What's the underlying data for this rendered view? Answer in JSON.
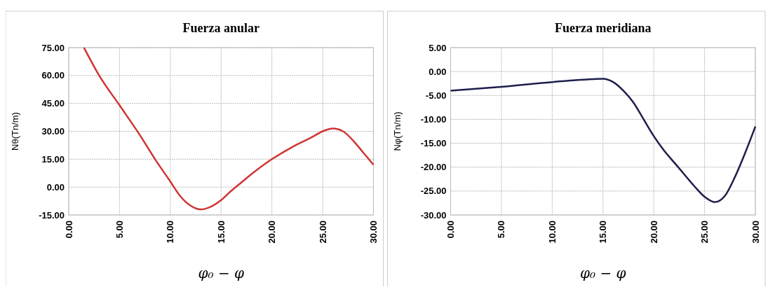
{
  "chart_data": [
    {
      "type": "line",
      "title": "Fuerza anular",
      "xlabel": "φ₀ − φ",
      "ylabel": "Nθ(Tn/m)",
      "xlim": [
        0,
        30
      ],
      "ylim": [
        -15,
        75
      ],
      "xticks": [
        {
          "value": 0,
          "label": "0.00"
        },
        {
          "value": 5,
          "label": "5.00"
        },
        {
          "value": 10,
          "label": "10.00"
        },
        {
          "value": 15,
          "label": "15.00"
        },
        {
          "value": 20,
          "label": "20.00"
        },
        {
          "value": 25,
          "label": "25.00"
        },
        {
          "value": 30,
          "label": "30.00"
        }
      ],
      "yticks": [
        {
          "value": -15,
          "label": "-15.00"
        },
        {
          "value": 0,
          "label": "0.00"
        },
        {
          "value": 15,
          "label": "15.00"
        },
        {
          "value": 30,
          "label": "30.00"
        },
        {
          "value": 45,
          "label": "45.00"
        },
        {
          "value": 60,
          "label": "60.00"
        },
        {
          "value": 75,
          "label": "75.00"
        }
      ],
      "grid": true,
      "series": [
        {
          "color": "#d03434",
          "x": [
            1.5,
            3,
            5,
            7,
            8.5,
            10,
            11,
            12,
            13,
            14,
            15,
            16,
            17,
            18,
            20,
            22,
            24,
            25,
            26,
            27,
            28,
            29,
            30
          ],
          "values": [
            75,
            60,
            44,
            28,
            15,
            3,
            -5,
            -10,
            -12,
            -10.5,
            -7,
            -2,
            2.5,
            7,
            15,
            21.5,
            27,
            30,
            31.5,
            30,
            25,
            18.5,
            12
          ]
        }
      ]
    },
    {
      "type": "line",
      "title": "Fuerza meridiana",
      "xlabel": "φ₀ − φ",
      "ylabel": "Nφ(Tn/m)",
      "xlim": [
        0,
        30
      ],
      "ylim": [
        -30,
        5
      ],
      "xticks": [
        {
          "value": 0,
          "label": "0.00"
        },
        {
          "value": 5,
          "label": "5.00"
        },
        {
          "value": 10,
          "label": "10.00"
        },
        {
          "value": 15,
          "label": "15.00"
        },
        {
          "value": 20,
          "label": "20.00"
        },
        {
          "value": 25,
          "label": "25.00"
        },
        {
          "value": 30,
          "label": "30.00"
        }
      ],
      "yticks": [
        {
          "value": -30,
          "label": "-30.00"
        },
        {
          "value": -25,
          "label": "-25.00"
        },
        {
          "value": -20,
          "label": "-20.00"
        },
        {
          "value": -15,
          "label": "-15.00"
        },
        {
          "value": -10,
          "label": "-10.00"
        },
        {
          "value": -5,
          "label": "-5.00"
        },
        {
          "value": 0,
          "label": "0.00"
        },
        {
          "value": 5,
          "label": "5.00"
        }
      ],
      "grid": true,
      "series": [
        {
          "color": "#1e1e4c",
          "x": [
            0,
            5,
            10,
            14,
            15,
            16,
            17,
            18,
            19,
            20,
            21,
            22,
            23,
            24,
            25,
            26,
            27,
            28,
            29,
            30
          ],
          "values": [
            -4,
            -3.2,
            -2.2,
            -1.6,
            -1.5,
            -2.2,
            -4,
            -6.5,
            -10,
            -13.5,
            -16.5,
            -19,
            -21.5,
            -24,
            -26.2,
            -27.3,
            -26,
            -22,
            -17,
            -11.5
          ]
        }
      ]
    }
  ]
}
